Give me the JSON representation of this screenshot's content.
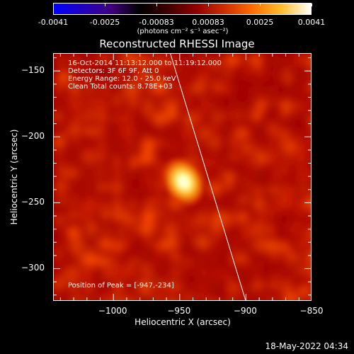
{
  "colorbar": {
    "tick_labels": [
      "-0.0041",
      "-0.0025",
      "-0.00083",
      "0.00083",
      "0.0025",
      "0.0041"
    ],
    "units": "(photons cm⁻² s⁻¹ asec⁻²)",
    "colormap": [
      "#0000ff",
      "#2000c0",
      "#400080",
      "#000000",
      "#400000",
      "#900000",
      "#d03000",
      "#ff7000",
      "#ffc030",
      "#ffffff"
    ]
  },
  "title": "Reconstructed RHESSI Image",
  "info_lines": [
    "16-Oct-2014 11:13:12.000 to 11:19:12.000",
    "Detectors: 3F 6F 9F, Att 0",
    "Energy Range: 12.0 - 25.0 keV",
    "Clean    Total counts: 8.78E+03"
  ],
  "peak_text": "Position of Peak = [-947,-234]",
  "chart_data": {
    "type": "heatmap",
    "title": "Reconstructed RHESSI Image",
    "xlabel": "Heliocentric X (arcsec)",
    "ylabel": "Heliocentric Y (arcsec)",
    "xlim": [
      -1045,
      -850
    ],
    "ylim": [
      -325,
      -137
    ],
    "x_ticks": [
      -1000,
      -950,
      -900,
      -850
    ],
    "y_ticks": [
      -150,
      -200,
      -250,
      -300
    ],
    "x_tick_labels": [
      "−1000",
      "−950",
      "−900",
      "−850"
    ],
    "y_tick_labels": [
      "−150",
      "−200",
      "−250",
      "−300"
    ],
    "peak_position": [
      -947,
      -234
    ],
    "limb_line": [
      [
        -957,
        -137
      ],
      [
        -900,
        -325
      ]
    ],
    "colorbar_range": [
      -0.0041,
      0.0041
    ]
  },
  "timestamp": "18-May-2022 04:34"
}
